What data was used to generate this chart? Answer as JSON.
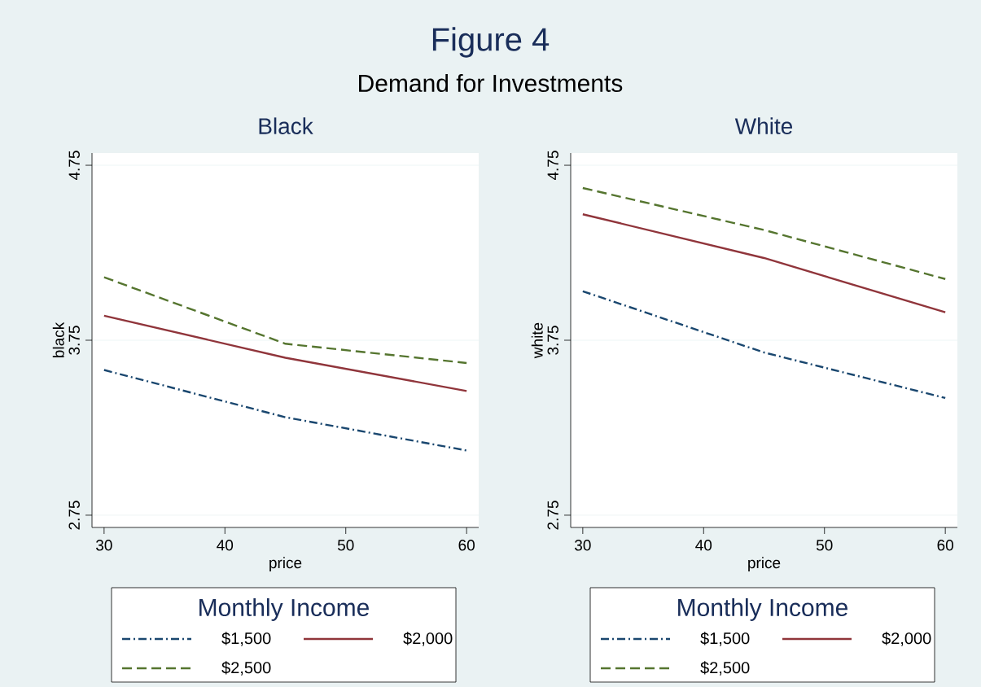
{
  "chart_data": [
    {
      "type": "line",
      "title": "Black",
      "xlabel": "price",
      "ylabel": "black",
      "legend_title": "Monthly Income",
      "annotations": [
        "Figure 4",
        "Demand for Investments"
      ],
      "x": [
        30,
        45,
        60
      ],
      "xlim": [
        29,
        61
      ],
      "xticks": [
        30,
        40,
        50,
        60
      ],
      "ylim": [
        2.68,
        4.82
      ],
      "yticks": [
        2.75,
        3.75,
        4.75
      ],
      "grid": "y",
      "legend": "bottom",
      "series": [
        {
          "name": "$1,500",
          "color": "#1a476f",
          "line_style": "dashdot",
          "values": [
            3.58,
            3.31,
            3.12
          ]
        },
        {
          "name": "$2,000",
          "color": "#90353b",
          "line_style": "solid",
          "values": [
            3.89,
            3.65,
            3.46
          ]
        },
        {
          "name": "$2,500",
          "color": "#55752f",
          "line_style": "dashed",
          "values": [
            4.11,
            3.73,
            3.62
          ]
        }
      ]
    },
    {
      "type": "line",
      "title": "White",
      "xlabel": "price",
      "ylabel": "white",
      "legend_title": "Monthly Income",
      "x": [
        30,
        45,
        60
      ],
      "xlim": [
        29,
        61
      ],
      "xticks": [
        30,
        40,
        50,
        60
      ],
      "ylim": [
        2.68,
        4.82
      ],
      "yticks": [
        2.75,
        3.75,
        4.75
      ],
      "grid": "y",
      "legend": "bottom",
      "series": [
        {
          "name": "$1,500",
          "color": "#1a476f",
          "line_style": "dashdot",
          "values": [
            4.03,
            3.68,
            3.42
          ]
        },
        {
          "name": "$2,000",
          "color": "#90353b",
          "line_style": "solid",
          "values": [
            4.47,
            4.22,
            3.91
          ]
        },
        {
          "name": "$2,500",
          "color": "#55752f",
          "line_style": "dashed",
          "values": [
            4.62,
            4.38,
            4.1
          ]
        }
      ]
    }
  ]
}
